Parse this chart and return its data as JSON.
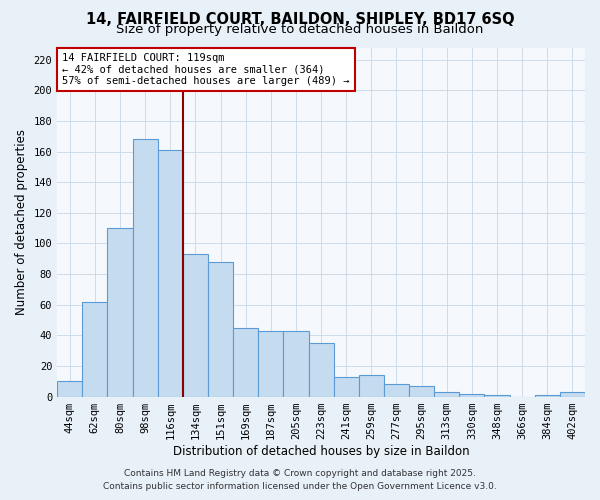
{
  "title": "14, FAIRFIELD COURT, BAILDON, SHIPLEY, BD17 6SQ",
  "subtitle": "Size of property relative to detached houses in Baildon",
  "xlabel": "Distribution of detached houses by size in Baildon",
  "ylabel": "Number of detached properties",
  "categories": [
    "44sqm",
    "62sqm",
    "80sqm",
    "98sqm",
    "116sqm",
    "134sqm",
    "151sqm",
    "169sqm",
    "187sqm",
    "205sqm",
    "223sqm",
    "241sqm",
    "259sqm",
    "277sqm",
    "295sqm",
    "313sqm",
    "330sqm",
    "348sqm",
    "366sqm",
    "384sqm",
    "402sqm"
  ],
  "values": [
    10,
    62,
    110,
    168,
    161,
    93,
    88,
    45,
    43,
    43,
    35,
    13,
    14,
    8,
    7,
    3,
    2,
    1,
    0,
    1,
    3
  ],
  "bar_color": "#c5dcf0",
  "bar_edge_color": "#5b9bd5",
  "vline_index": 4,
  "vline_color": "#8b0000",
  "annotation_title": "14 FAIRFIELD COURT: 119sqm",
  "annotation_line1": "← 42% of detached houses are smaller (364)",
  "annotation_line2": "57% of semi-detached houses are larger (489) →",
  "annotation_box_color": "#ffffff",
  "annotation_box_edge": "#c00000",
  "ylim": [
    0,
    228
  ],
  "yticks": [
    0,
    20,
    40,
    60,
    80,
    100,
    120,
    140,
    160,
    180,
    200,
    220
  ],
  "footer1": "Contains HM Land Registry data © Crown copyright and database right 2025.",
  "footer2": "Contains public sector information licensed under the Open Government Licence v3.0.",
  "bg_color": "#e8f0f8",
  "plot_bg_color": "#f5f9fd",
  "grid_color": "#c8d8e8",
  "title_fontsize": 10.5,
  "subtitle_fontsize": 9.5,
  "axis_label_fontsize": 8.5,
  "tick_fontsize": 7.5,
  "footer_fontsize": 6.5
}
